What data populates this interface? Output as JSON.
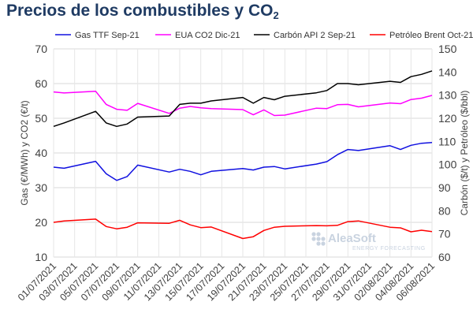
{
  "title_main": "Precios de los combustibles y CO",
  "title_sub": "2",
  "chart_data": {
    "type": "line",
    "x": [
      "01/07/2021",
      "02/07/2021",
      "05/07/2021",
      "06/07/2021",
      "07/07/2021",
      "08/07/2021",
      "09/07/2021",
      "12/07/2021",
      "13/07/2021",
      "14/07/2021",
      "15/07/2021",
      "16/07/2021",
      "19/07/2021",
      "20/07/2021",
      "21/07/2021",
      "22/07/2021",
      "23/07/2021",
      "26/07/2021",
      "27/07/2021",
      "28/07/2021",
      "29/07/2021",
      "30/07/2021",
      "02/08/2021",
      "03/08/2021",
      "04/08/2021",
      "05/08/2021",
      "06/08/2021"
    ],
    "x_tick_labels": [
      "01/07/2021",
      "03/07/2021",
      "05/07/2021",
      "07/07/2021",
      "09/07/2021",
      "11/07/2021",
      "13/07/2021",
      "15/07/2021",
      "17/07/2021",
      "19/07/2021",
      "21/07/2021",
      "23/07/2021",
      "25/07/2021",
      "27/07/2021",
      "29/07/2021",
      "31/07/2021",
      "02/08/2021",
      "04/08/2021",
      "06/08/2021"
    ],
    "x_range": [
      "01/07/2021",
      "06/08/2021"
    ],
    "y_left": {
      "label": "Gas (€/MWh) y CO2 (€/t)",
      "range": [
        10,
        70
      ],
      "ticks": [
        "10",
        "20",
        "30",
        "40",
        "50",
        "60",
        "70"
      ]
    },
    "y_right": {
      "label": "Carbón ($/t) y Petróleo ($/bbl)",
      "range": [
        60,
        150
      ],
      "ticks": [
        "60",
        "70",
        "80",
        "90",
        "100",
        "110",
        "120",
        "130",
        "140",
        "150"
      ]
    },
    "grid": true,
    "legend_position": "top",
    "series": [
      {
        "name": "Gas TTF Sep-21",
        "axis": "left",
        "color": "#1010e0",
        "values": [
          35.9,
          35.6,
          37.6,
          34.0,
          32.1,
          33.2,
          36.5,
          34.5,
          35.3,
          34.7,
          33.7,
          34.7,
          35.5,
          35.1,
          35.9,
          36.1,
          35.4,
          36.8,
          37.5,
          39.5,
          41.0,
          40.7,
          42.1,
          41.0,
          42.2,
          42.8,
          43.0
        ]
      },
      {
        "name": "EUA CO2 Dic-21",
        "axis": "left",
        "color": "#ff00ff",
        "values": [
          57.6,
          57.3,
          57.8,
          54.0,
          52.6,
          52.3,
          54.3,
          51.4,
          52.9,
          53.4,
          53.0,
          52.8,
          52.5,
          51.0,
          52.4,
          50.8,
          50.9,
          52.9,
          52.8,
          53.9,
          54.0,
          53.3,
          54.4,
          54.2,
          55.4,
          55.8,
          56.6
        ]
      },
      {
        "name": "Carbón API 2 Sep-21",
        "axis": "right",
        "color": "#000000",
        "values": [
          116.5,
          118.0,
          123.0,
          118.0,
          116.5,
          117.5,
          120.5,
          121.0,
          126.0,
          126.5,
          126.5,
          127.5,
          129.0,
          126.5,
          129.0,
          128.0,
          129.5,
          131.0,
          132.0,
          135.0,
          135.0,
          134.5,
          136.0,
          135.5,
          138.0,
          139.0,
          140.5
        ]
      },
      {
        "name": "Petróleo Brent Oct-21",
        "axis": "right",
        "color": "#ff0000",
        "values": [
          75.0,
          75.6,
          76.4,
          73.2,
          72.2,
          72.9,
          74.8,
          74.6,
          75.9,
          73.9,
          72.7,
          73.0,
          68.0,
          68.8,
          71.5,
          72.9,
          73.3,
          73.6,
          73.5,
          73.7,
          75.3,
          75.6,
          72.9,
          72.6,
          70.9,
          71.6,
          71.0
        ]
      }
    ]
  },
  "logo": {
    "brand": "AleaSoft",
    "tagline": "ENERGY FORECASTING"
  }
}
